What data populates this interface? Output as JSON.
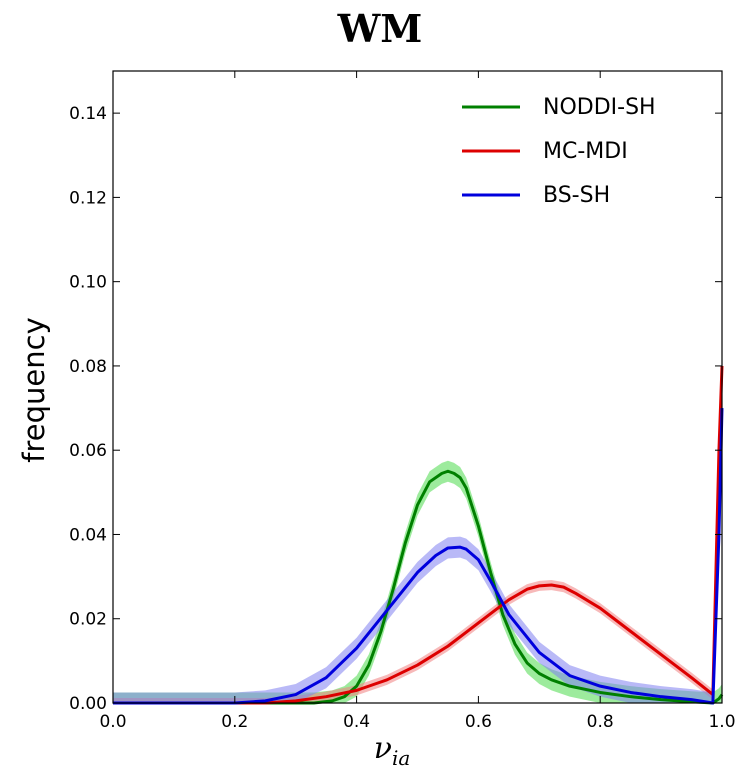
{
  "chart_data": {
    "type": "line",
    "title": "WM",
    "xlabel": "ν",
    "xlabel_subscript": "ia",
    "ylabel": "frequency",
    "xlim": [
      0.0,
      1.0
    ],
    "ylim": [
      0.0,
      0.15
    ],
    "xticks": [
      "0.0",
      "0.2",
      "0.4",
      "0.6",
      "0.8",
      "1.0"
    ],
    "yticks": [
      "0.00",
      "0.02",
      "0.04",
      "0.06",
      "0.08",
      "0.10",
      "0.12",
      "0.14"
    ],
    "grid": false,
    "legend_position": "top-right",
    "series": [
      {
        "name": "NODDI-SH",
        "color": "#008000",
        "band_color": "#4ddb4d",
        "x": [
          0.0,
          0.33,
          0.36,
          0.38,
          0.4,
          0.42,
          0.44,
          0.46,
          0.48,
          0.5,
          0.52,
          0.54,
          0.55,
          0.56,
          0.57,
          0.58,
          0.6,
          0.62,
          0.64,
          0.66,
          0.68,
          0.7,
          0.72,
          0.75,
          0.8,
          0.85,
          0.9,
          0.95,
          0.985,
          0.995,
          1.0
        ],
        "y": [
          0.0,
          0.0,
          0.0005,
          0.0015,
          0.004,
          0.009,
          0.017,
          0.027,
          0.038,
          0.047,
          0.0525,
          0.0545,
          0.055,
          0.0545,
          0.0535,
          0.051,
          0.042,
          0.031,
          0.021,
          0.014,
          0.0095,
          0.007,
          0.0055,
          0.004,
          0.0025,
          0.0015,
          0.0008,
          0.0003,
          0.0,
          0.001,
          0.002
        ],
        "band": 0.0025
      },
      {
        "name": "MC-MDI",
        "color": "#dd0000",
        "band_color": "#f08080",
        "x": [
          0.0,
          0.25,
          0.3,
          0.35,
          0.4,
          0.45,
          0.5,
          0.55,
          0.6,
          0.65,
          0.68,
          0.7,
          0.72,
          0.74,
          0.76,
          0.8,
          0.85,
          0.9,
          0.95,
          0.985,
          0.995,
          1.0
        ],
        "y": [
          0.0,
          0.0,
          0.0005,
          0.0015,
          0.003,
          0.0055,
          0.009,
          0.0135,
          0.019,
          0.0245,
          0.027,
          0.0278,
          0.028,
          0.0275,
          0.026,
          0.0225,
          0.017,
          0.0115,
          0.006,
          0.002,
          0.06,
          0.08
        ],
        "band": 0.0012
      },
      {
        "name": "BS-SH",
        "color": "#0000dd",
        "band_color": "#8080f0",
        "x": [
          0.0,
          0.2,
          0.25,
          0.3,
          0.35,
          0.4,
          0.45,
          0.5,
          0.53,
          0.55,
          0.57,
          0.58,
          0.6,
          0.62,
          0.65,
          0.7,
          0.75,
          0.8,
          0.85,
          0.9,
          0.95,
          0.985,
          0.995,
          1.0
        ],
        "y": [
          0.0,
          0.0,
          0.0005,
          0.002,
          0.006,
          0.013,
          0.022,
          0.031,
          0.035,
          0.0368,
          0.037,
          0.0365,
          0.034,
          0.029,
          0.021,
          0.012,
          0.0065,
          0.004,
          0.0025,
          0.0015,
          0.0008,
          0.0,
          0.04,
          0.07
        ],
        "band": 0.0025
      }
    ]
  }
}
